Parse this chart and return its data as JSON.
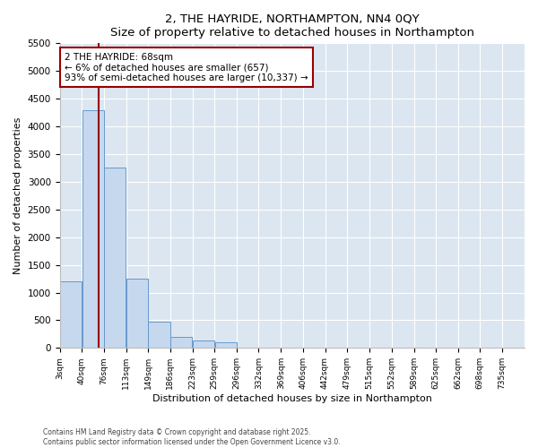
{
  "title": "2, THE HAYRIDE, NORTHAMPTON, NN4 0QY",
  "subtitle": "Size of property relative to detached houses in Northampton",
  "xlabel": "Distribution of detached houses by size in Northampton",
  "ylabel": "Number of detached properties",
  "bar_color": "#c5d8ee",
  "bar_edge_color": "#6699cc",
  "background_color": "#dce6f1",
  "bins": [
    "3sqm",
    "40sqm",
    "76sqm",
    "113sqm",
    "149sqm",
    "186sqm",
    "223sqm",
    "259sqm",
    "296sqm",
    "332sqm",
    "369sqm",
    "406sqm",
    "442sqm",
    "479sqm",
    "515sqm",
    "552sqm",
    "589sqm",
    "625sqm",
    "662sqm",
    "698sqm",
    "735sqm"
  ],
  "bin_edges": [
    3,
    40,
    76,
    113,
    149,
    186,
    223,
    259,
    296,
    332,
    369,
    406,
    442,
    479,
    515,
    552,
    589,
    625,
    662,
    698,
    735
  ],
  "values": [
    1200,
    4300,
    3250,
    1250,
    480,
    200,
    130,
    100,
    0,
    0,
    0,
    0,
    0,
    0,
    0,
    0,
    0,
    0,
    0,
    0
  ],
  "ylim": [
    0,
    5500
  ],
  "yticks": [
    0,
    500,
    1000,
    1500,
    2000,
    2500,
    3000,
    3500,
    4000,
    4500,
    5000,
    5500
  ],
  "property_size": 68,
  "property_label": "2 THE HAYRIDE: 68sqm",
  "annotation_line1": "← 6% of detached houses are smaller (657)",
  "annotation_line2": "93% of semi-detached houses are larger (10,337) →",
  "vline_color": "#990000",
  "annotation_box_edgecolor": "#990000",
  "footer_line1": "Contains HM Land Registry data © Crown copyright and database right 2025.",
  "footer_line2": "Contains public sector information licensed under the Open Government Licence v3.0."
}
